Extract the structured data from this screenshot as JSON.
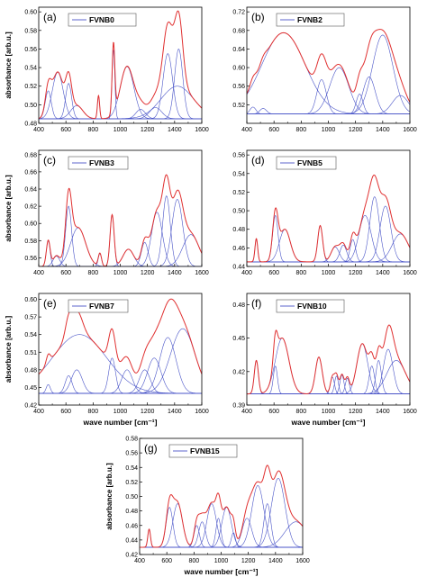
{
  "figure": {
    "xlabel": "wave number [cm⁻¹]",
    "ylabel": "absorbance [arb.u.]"
  },
  "colors": {
    "fit": "#e03030",
    "component": "#4a55c8",
    "baseline": "#4a55c8"
  },
  "chart_data": [
    {
      "type": "line",
      "letter": "(a)",
      "legend": "FVNB0",
      "xlabel": "",
      "ylabel": "absorbance [arb.u.]",
      "xlim": [
        400,
        1600
      ],
      "ylim": [
        0.48,
        0.605
      ],
      "xticks": [
        400,
        600,
        800,
        1000,
        1200,
        1400,
        1600
      ],
      "yticks": [
        0.48,
        0.5,
        0.52,
        0.54,
        0.56,
        0.58,
        0.6
      ],
      "ytick_labels": [
        "0.48",
        "0.50",
        "0.52",
        "0.54",
        "0.56",
        "0.58",
        "0.60"
      ],
      "baseline": 0.485,
      "peaks": [
        [
          470,
          0.03,
          22
        ],
        [
          540,
          0.05,
          40
        ],
        [
          620,
          0.038,
          22
        ],
        [
          680,
          0.014,
          45
        ],
        [
          840,
          0.025,
          8
        ],
        [
          950,
          0.075,
          10
        ],
        [
          1050,
          0.056,
          50
        ],
        [
          1150,
          0.01,
          35
        ],
        [
          1260,
          0.012,
          45
        ],
        [
          1350,
          0.07,
          35
        ],
        [
          1430,
          0.075,
          30
        ],
        [
          1420,
          0.035,
          120
        ]
      ]
    },
    {
      "type": "line",
      "letter": "(b)",
      "legend": "FVNB2",
      "xlabel": "",
      "ylabel": "",
      "xlim": [
        400,
        1600
      ],
      "ylim": [
        0.48,
        0.73
      ],
      "xticks": [
        400,
        600,
        800,
        1000,
        1200,
        1400,
        1600
      ],
      "yticks": [
        0.52,
        0.56,
        0.6,
        0.64,
        0.68,
        0.72
      ],
      "ytick_labels": [
        "0.52",
        "0.56",
        "0.60",
        "0.64",
        "0.68",
        "0.72"
      ],
      "baseline": 0.5,
      "peaks": [
        [
          445,
          0.015,
          22
        ],
        [
          520,
          0.012,
          25
        ],
        [
          670,
          0.175,
          160
        ],
        [
          950,
          0.074,
          35
        ],
        [
          1080,
          0.1,
          70
        ],
        [
          1230,
          0.043,
          25
        ],
        [
          1300,
          0.08,
          45
        ],
        [
          1400,
          0.17,
          75
        ],
        [
          1530,
          0.04,
          60
        ]
      ]
    },
    {
      "type": "line",
      "letter": "(c)",
      "legend": "FVNB3",
      "xlabel": "",
      "ylabel": "absorbance [arb.u.]",
      "xlim": [
        400,
        1600
      ],
      "ylim": [
        0.55,
        0.685
      ],
      "xticks": [
        400,
        600,
        800,
        1000,
        1200,
        1400,
        1600
      ],
      "yticks": [
        0.56,
        0.58,
        0.6,
        0.62,
        0.64,
        0.66,
        0.68
      ],
      "ytick_labels": [
        "0.56",
        "0.58",
        "0.60",
        "0.62",
        "0.64",
        "0.66",
        "0.68"
      ],
      "baseline": 0.55,
      "peaks": [
        [
          470,
          0.03,
          14
        ],
        [
          530,
          0.012,
          25
        ],
        [
          620,
          0.07,
          22
        ],
        [
          690,
          0.045,
          55
        ],
        [
          850,
          0.015,
          12
        ],
        [
          940,
          0.06,
          15
        ],
        [
          1060,
          0.02,
          40
        ],
        [
          1180,
          0.028,
          25
        ],
        [
          1270,
          0.063,
          40
        ],
        [
          1340,
          0.082,
          28
        ],
        [
          1420,
          0.078,
          40
        ],
        [
          1520,
          0.037,
          60
        ]
      ]
    },
    {
      "type": "line",
      "letter": "(d)",
      "legend": "FVNB5",
      "xlabel": "",
      "ylabel": "",
      "xlim": [
        400,
        1600
      ],
      "ylim": [
        0.44,
        0.565
      ],
      "xticks": [
        400,
        600,
        800,
        1000,
        1200,
        1400,
        1600
      ],
      "yticks": [
        0.44,
        0.46,
        0.48,
        0.5,
        0.52,
        0.54,
        0.56
      ],
      "ytick_labels": [
        "0.44",
        "0.46",
        "0.48",
        "0.50",
        "0.52",
        "0.54",
        "0.56"
      ],
      "baseline": 0.445,
      "peaks": [
        [
          470,
          0.025,
          10
        ],
        [
          610,
          0.05,
          20
        ],
        [
          680,
          0.035,
          40
        ],
        [
          940,
          0.039,
          18
        ],
        [
          1050,
          0.016,
          30
        ],
        [
          1110,
          0.018,
          25
        ],
        [
          1180,
          0.024,
          20
        ],
        [
          1270,
          0.05,
          45
        ],
        [
          1340,
          0.07,
          35
        ],
        [
          1420,
          0.06,
          40
        ],
        [
          1530,
          0.03,
          60
        ]
      ]
    },
    {
      "type": "line",
      "letter": "(e)",
      "legend": "FVNB7",
      "xlabel": "wave number [cm⁻¹]",
      "ylabel": "absorbance [arb.u.]",
      "xlim": [
        400,
        1600
      ],
      "ylim": [
        0.42,
        0.61
      ],
      "xticks": [
        400,
        600,
        800,
        1000,
        1200,
        1400,
        1600
      ],
      "yticks": [
        0.42,
        0.45,
        0.48,
        0.51,
        0.54,
        0.57,
        0.6
      ],
      "ytick_labels": [
        "0.42",
        "0.45",
        "0.48",
        "0.51",
        "0.54",
        "0.57",
        "0.60"
      ],
      "baseline": 0.44,
      "peaks": [
        [
          470,
          0.015,
          15
        ],
        [
          620,
          0.03,
          25
        ],
        [
          680,
          0.04,
          40
        ],
        [
          700,
          0.1,
          200
        ],
        [
          940,
          0.06,
          25
        ],
        [
          1050,
          0.04,
          40
        ],
        [
          1180,
          0.04,
          40
        ],
        [
          1250,
          0.06,
          50
        ],
        [
          1350,
          0.095,
          60
        ],
        [
          1460,
          0.11,
          90
        ]
      ]
    },
    {
      "type": "line",
      "letter": "(f)",
      "legend": "FVNB10",
      "xlabel": "wave number [cm⁻¹]",
      "ylabel": "",
      "xlim": [
        400,
        1600
      ],
      "ylim": [
        0.39,
        0.49
      ],
      "xticks": [
        400,
        600,
        800,
        1000,
        1200,
        1400,
        1600
      ],
      "yticks": [
        0.39,
        0.42,
        0.45,
        0.48
      ],
      "ytick_labels": [
        "0.39",
        "0.42",
        "0.45",
        "0.48"
      ],
      "baseline": 0.4,
      "peaks": [
        [
          470,
          0.03,
          15
        ],
        [
          610,
          0.025,
          15
        ],
        [
          660,
          0.05,
          50
        ],
        [
          930,
          0.033,
          25
        ],
        [
          1030,
          0.015,
          15
        ],
        [
          1060,
          0.016,
          14
        ],
        [
          1100,
          0.017,
          15
        ],
        [
          1140,
          0.014,
          15
        ],
        [
          1250,
          0.045,
          40
        ],
        [
          1320,
          0.025,
          20
        ],
        [
          1370,
          0.03,
          20
        ],
        [
          1440,
          0.04,
          35
        ],
        [
          1500,
          0.03,
          70
        ]
      ]
    },
    {
      "type": "line",
      "letter": "(g)",
      "legend": "FVNB15",
      "xlabel": "wave number [cm⁻¹]",
      "ylabel": "absorbance [arb.u.]",
      "xlim": [
        400,
        1600
      ],
      "ylim": [
        0.42,
        0.58
      ],
      "xticks": [
        400,
        600,
        800,
        1000,
        1200,
        1400,
        1600
      ],
      "yticks": [
        0.42,
        0.44,
        0.46,
        0.48,
        0.5,
        0.52,
        0.54,
        0.56,
        0.58
      ],
      "ytick_labels": [
        "0.42",
        "0.44",
        "0.46",
        "0.48",
        "0.50",
        "0.52",
        "0.54",
        "0.56",
        "0.58"
      ],
      "baseline": 0.43,
      "peaks": [
        [
          470,
          0.025,
          10
        ],
        [
          620,
          0.055,
          25
        ],
        [
          680,
          0.06,
          35
        ],
        [
          820,
          0.03,
          20
        ],
        [
          860,
          0.035,
          25
        ],
        [
          930,
          0.06,
          35
        ],
        [
          980,
          0.04,
          18
        ],
        [
          1040,
          0.055,
          35
        ],
        [
          1090,
          0.02,
          15
        ],
        [
          1190,
          0.04,
          35
        ],
        [
          1270,
          0.085,
          45
        ],
        [
          1340,
          0.06,
          25
        ],
        [
          1420,
          0.095,
          50
        ],
        [
          1550,
          0.035,
          80
        ]
      ]
    }
  ]
}
